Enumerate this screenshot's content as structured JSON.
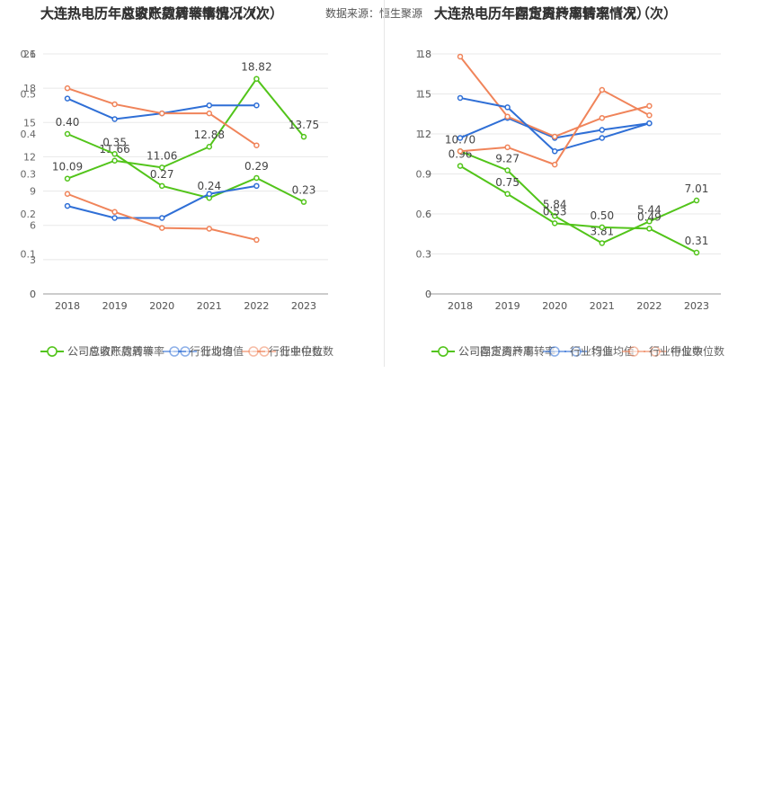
{
  "source_text": "数据来源：恒生聚源",
  "chart_data": [
    {
      "type": "line",
      "panel": "left",
      "title": "大连热电历年应收账款周转率情况（次）",
      "x": [
        "2018",
        "2019",
        "2020",
        "2021",
        "2022",
        "2023"
      ],
      "ylim": [
        0,
        21
      ],
      "yticks": [
        "0",
        "3",
        "6",
        "9",
        "12",
        "15",
        "18",
        "21"
      ],
      "grid": true,
      "legend_position": "bottom",
      "series": [
        {
          "name": "公司应收账款周转率",
          "color": "#52c41a",
          "values": [
            10.09,
            11.66,
            11.06,
            12.88,
            18.82,
            13.75
          ],
          "labels": [
            "10.09",
            "11.66",
            "11.06",
            "12.88",
            "18.82",
            "13.75"
          ]
        },
        {
          "name": "行业均值",
          "color": "#2f6fd6",
          "values": [
            17.1,
            15.3,
            15.8,
            16.5,
            16.5,
            null
          ]
        },
        {
          "name": "行业中位数",
          "color": "#f0845a",
          "values": [
            18.0,
            16.6,
            15.8,
            15.8,
            13.0,
            null
          ]
        }
      ]
    },
    {
      "type": "line",
      "panel": "left",
      "title": "大连热电历年总资产周转率情况（次）",
      "x": [
        "2018",
        "2019",
        "2020",
        "2021",
        "2022",
        "2023"
      ],
      "ylim": [
        0,
        0.6
      ],
      "yticks": [
        "0",
        "0.1",
        "0.2",
        "0.3",
        "0.4",
        "0.5",
        "0.6"
      ],
      "grid": true,
      "legend_position": "bottom",
      "series": [
        {
          "name": "公司总资产周转率",
          "color": "#52c41a",
          "values": [
            0.4,
            0.35,
            0.27,
            0.24,
            0.29,
            0.23
          ],
          "labels": [
            "0.40",
            "0.35",
            "0.27",
            "0.24",
            "0.29",
            "0.23"
          ]
        },
        {
          "name": "行业均值",
          "color": "#2f6fd6",
          "values": [
            0.22,
            0.19,
            0.19,
            0.25,
            0.27,
            null
          ]
        },
        {
          "name": "行业中位数",
          "color": "#f0845a",
          "values": [
            0.25,
            0.205,
            0.165,
            0.163,
            0.135,
            null
          ]
        }
      ]
    },
    {
      "type": "line",
      "panel": "right",
      "title": "大连热电历年固定资产周转率情况（次）",
      "x": [
        "2018",
        "2019",
        "2020",
        "2021",
        "2022",
        "2023"
      ],
      "ylim": [
        0,
        18
      ],
      "yticks": [
        "0",
        "3",
        "6",
        "9",
        "12",
        "15",
        "18"
      ],
      "grid": true,
      "legend_position": "bottom",
      "series": [
        {
          "name": "公司固定资产周转率",
          "color": "#52c41a",
          "values": [
            10.7,
            9.27,
            5.84,
            3.81,
            5.44,
            7.01
          ],
          "labels": [
            "10.70",
            "9.27",
            "5.84",
            "3.81",
            "5.44",
            "7.01"
          ]
        },
        {
          "name": "行业均值",
          "color": "#2f6fd6",
          "values": [
            11.7,
            13.2,
            11.7,
            12.3,
            12.8,
            null
          ]
        },
        {
          "name": "行业中位数",
          "color": "#f0845a",
          "values": [
            17.8,
            13.3,
            11.8,
            13.2,
            14.1,
            null
          ]
        }
      ]
    },
    {
      "type": "line",
      "panel": "right",
      "title": "大连热电历年存货周转率情况（次）",
      "x": [
        "2018",
        "2019",
        "2020",
        "2021",
        "2022",
        "2023"
      ],
      "ylim": [
        0,
        1.8
      ],
      "yticks": [
        "0",
        "0.3",
        "0.6",
        "0.9",
        "1.2",
        "1.5",
        "1.8"
      ],
      "grid": true,
      "legend_position": "bottom",
      "series": [
        {
          "name": "公司存货周转率",
          "color": "#52c41a",
          "values": [
            0.96,
            0.75,
            0.53,
            0.5,
            0.49,
            0.31
          ],
          "labels": [
            "0.96",
            "0.75",
            "0.53",
            "0.50",
            "0.49",
            "0.31"
          ]
        },
        {
          "name": "行业均值",
          "color": "#2f6fd6",
          "values": [
            1.47,
            1.4,
            1.07,
            1.17,
            1.28,
            null
          ]
        },
        {
          "name": "行业中位数",
          "color": "#f0845a",
          "values": [
            1.07,
            1.1,
            0.97,
            1.53,
            1.34,
            null
          ]
        }
      ]
    }
  ]
}
